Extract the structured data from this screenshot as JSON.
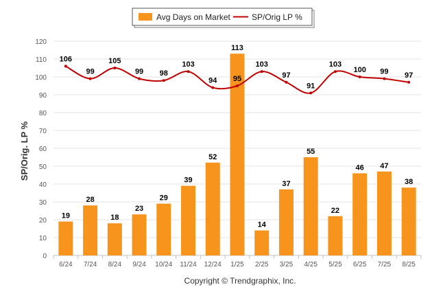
{
  "chart_data": {
    "type": "bar",
    "categories": [
      "6/24",
      "7/24",
      "8/24",
      "9/24",
      "10/24",
      "11/24",
      "12/24",
      "1/25",
      "2/25",
      "3/25",
      "4/25",
      "5/25",
      "6/25",
      "7/25",
      "8/25"
    ],
    "series": [
      {
        "name": "Avg Days on Market",
        "type": "bar",
        "values": [
          19,
          28,
          18,
          23,
          29,
          39,
          52,
          113,
          14,
          37,
          55,
          22,
          46,
          47,
          38
        ],
        "color": "#F7941D"
      },
      {
        "name": "SP/Orig LP %",
        "type": "line",
        "values": [
          106,
          99,
          105,
          99,
          98,
          103,
          94,
          95,
          103,
          97,
          91,
          103,
          100,
          99,
          97
        ],
        "color": "#C00000"
      }
    ],
    "ylabel": "SP/Orig. LP %",
    "xlabel": "",
    "ylim": [
      0,
      120
    ],
    "yticks": [
      0,
      10,
      20,
      30,
      40,
      50,
      60,
      70,
      80,
      90,
      100,
      110,
      120
    ],
    "grid": true,
    "legend_position": "top-center"
  },
  "footer": {
    "copyright": "Copyright © Trendgraphix, Inc."
  }
}
